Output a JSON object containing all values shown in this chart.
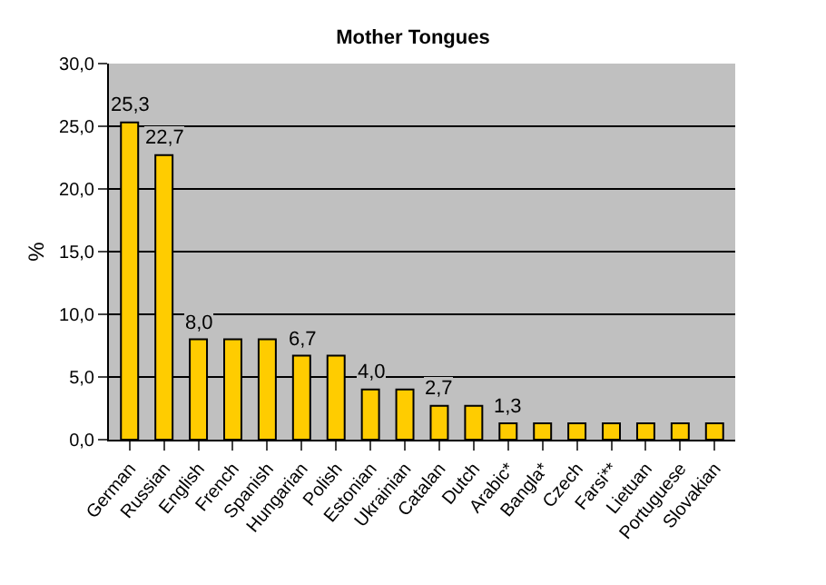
{
  "chart_data": {
    "type": "bar",
    "title": "Mother Tongues",
    "ylabel": "%",
    "categories": [
      "German",
      "Russian",
      "English",
      "French",
      "Spanish",
      "Hungarian",
      "Polish",
      "Estonian",
      "Ukrainian",
      "Catalan",
      "Dutch",
      "Arabic*",
      "Bangla*",
      "Czech",
      "Farsi**",
      "Lietuan",
      "Portuguese",
      "Slovakian"
    ],
    "values": [
      25.3,
      22.7,
      8.0,
      8.0,
      8.0,
      6.7,
      6.7,
      4.0,
      4.0,
      2.7,
      2.7,
      1.3,
      1.3,
      1.3,
      1.3,
      1.3,
      1.3,
      1.3
    ],
    "value_labels": [
      "25,3",
      "22,7",
      "8,0",
      null,
      null,
      "6,7",
      null,
      "4,0",
      null,
      "2,7",
      null,
      "1,3",
      null,
      null,
      null,
      null,
      null,
      null
    ],
    "color": "#ffcc00",
    "ylim": [
      0,
      30
    ],
    "yticks": [
      {
        "value": 0,
        "label": "0,0"
      },
      {
        "value": 5,
        "label": "5,0"
      },
      {
        "value": 10,
        "label": "10,0"
      },
      {
        "value": 15,
        "label": "15,0"
      },
      {
        "value": 20,
        "label": "20,0"
      },
      {
        "value": 25,
        "label": "25,0"
      },
      {
        "value": 30,
        "label": "30,0"
      }
    ],
    "grid": "y"
  }
}
